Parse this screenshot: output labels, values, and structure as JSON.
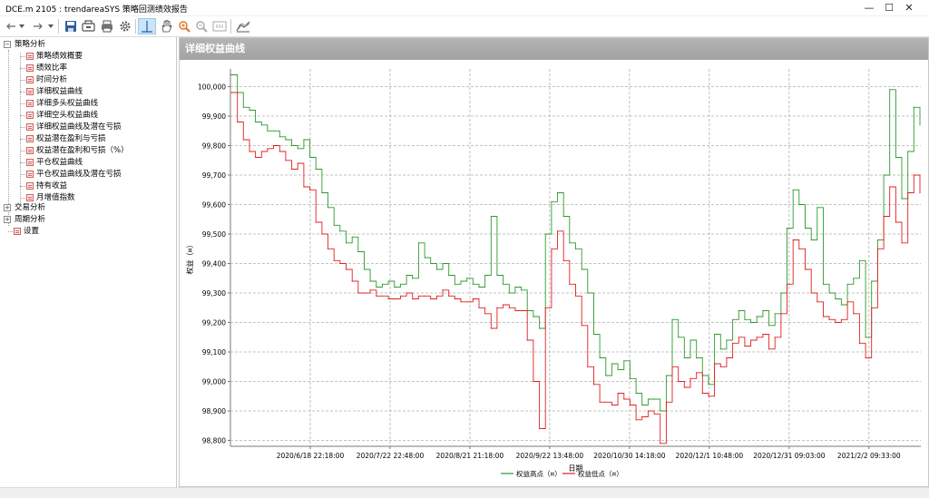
{
  "window": {
    "title": "DCE.m 2105 : trendareaSYS 策略回测绩效报告",
    "controls": [
      "—",
      "☐",
      "✕"
    ]
  },
  "toolbar": {
    "icons": [
      "back-icon",
      "dropdown-icon",
      "forward-icon",
      "dropdown-icon",
      "save-icon",
      "export-icon",
      "print-icon",
      "settings-icon",
      "crosshair-icon",
      "pan-hand-icon",
      "zoom-in-icon",
      "zoom-out-icon",
      "zoom-fit-icon",
      "chart-style-icon"
    ]
  },
  "tree": {
    "groups": [
      {
        "label": "策略分析",
        "expanded": true,
        "items": [
          {
            "label": "策略绩效概要"
          },
          {
            "label": "绩效比率"
          },
          {
            "label": "时间分析"
          },
          {
            "label": "详细权益曲线"
          },
          {
            "label": "详细多头权益曲线"
          },
          {
            "label": "详细空头权益曲线"
          },
          {
            "label": "详细权益曲线及潜在亏损"
          },
          {
            "label": "权益潜在盈利与亏损"
          },
          {
            "label": "权益潜在盈利和亏损（%）"
          },
          {
            "label": "平仓权益曲线"
          },
          {
            "label": "平仓权益曲线及潜在亏损"
          },
          {
            "label": "持有收益"
          },
          {
            "label": "月增值指数"
          }
        ]
      },
      {
        "label": "交易分析",
        "expanded": false
      },
      {
        "label": "周期分析",
        "expanded": false
      }
    ],
    "settings_label": "设置"
  },
  "panel": {
    "title": "详细权益曲线"
  },
  "chart_data": {
    "type": "line",
    "ylabel": "权益（¤）",
    "xlabel": "日期",
    "ylim": [
      98780,
      100060
    ],
    "y_ticks": [
      "100,000",
      "99,900",
      "99,800",
      "99,700",
      "99,600",
      "99,500",
      "99,400",
      "99,300",
      "99,200",
      "99,100",
      "99,000",
      "98,900",
      "98,800"
    ],
    "y_tick_values": [
      100000,
      99900,
      99800,
      99700,
      99600,
      99500,
      99400,
      99300,
      99200,
      99100,
      99000,
      98900,
      98800
    ],
    "x_ticks": [
      "2020/6/18 22:18:00",
      "2020/7/22 22:48:00",
      "2020/8/21 21:18:00",
      "2020/9/22 13:48:00",
      "2020/10/30 14:18:00",
      "2020/12/1 10:48:00",
      "2020/12/31 09:03:00",
      "2021/2/2 09:33:00"
    ],
    "grid": true,
    "legend": [
      {
        "name": "权益高点（¤）",
        "color": "#2e9a2e"
      },
      {
        "name": "权益低点（¤）",
        "color": "#e02020"
      }
    ],
    "series": [
      {
        "name": "权益高点（¤）",
        "values": [
          100040,
          99980,
          99930,
          99920,
          99880,
          99870,
          99850,
          99850,
          99830,
          99820,
          99800,
          99790,
          99820,
          99760,
          99720,
          99640,
          99590,
          99530,
          99510,
          99470,
          99490,
          99440,
          99380,
          99340,
          99320,
          99330,
          99340,
          99320,
          99330,
          99360,
          99350,
          99470,
          99420,
          99400,
          99380,
          99400,
          99360,
          99330,
          99340,
          99350,
          99330,
          99320,
          99360,
          99560,
          99360,
          99330,
          99300,
          99320,
          99310,
          99240,
          99220,
          99180,
          99500,
          99610,
          99640,
          99560,
          99470,
          99450,
          99380,
          99300,
          99160,
          99080,
          99020,
          99060,
          99040,
          99070,
          99010,
          98960,
          98920,
          98940,
          98940,
          98900,
          99020,
          99210,
          99150,
          99080,
          99140,
          99080,
          99020,
          98990,
          99160,
          99110,
          99140,
          99210,
          99240,
          99210,
          99200,
          99220,
          99240,
          99190,
          99230,
          99300,
          99520,
          99650,
          99600,
          99520,
          99480,
          99590,
          99330,
          99300,
          99280,
          99260,
          99330,
          99350,
          99410,
          99150,
          99340,
          99480,
          99700,
          99990,
          99760,
          99620,
          99780,
          99930,
          99870
        ]
      },
      {
        "name": "权益低点（¤）",
        "values": [
          99980,
          99880,
          99820,
          99780,
          99760,
          99780,
          99790,
          99800,
          99780,
          99750,
          99720,
          99740,
          99660,
          99650,
          99540,
          99500,
          99450,
          99410,
          99400,
          99380,
          99340,
          99300,
          99300,
          99310,
          99290,
          99290,
          99280,
          99280,
          99290,
          99300,
          99280,
          99290,
          99290,
          99280,
          99290,
          99310,
          99290,
          99280,
          99270,
          99270,
          99280,
          99250,
          99230,
          99180,
          99250,
          99260,
          99250,
          99240,
          99240,
          99140,
          99000,
          98840,
          99250,
          99450,
          99510,
          99410,
          99330,
          99290,
          99190,
          99050,
          98990,
          98930,
          98930,
          98920,
          98960,
          98940,
          98920,
          98870,
          98880,
          98900,
          98890,
          98790,
          98930,
          99050,
          99000,
          98980,
          99010,
          99030,
          98960,
          98950,
          99060,
          99050,
          99080,
          99130,
          99150,
          99120,
          99140,
          99150,
          99160,
          99110,
          99150,
          99230,
          99330,
          99480,
          99450,
          99380,
          99300,
          99270,
          99220,
          99210,
          99200,
          99210,
          99270,
          99230,
          99130,
          99080,
          99250,
          99450,
          99560,
          99660,
          99540,
          99470,
          99640,
          99700,
          99640
        ]
      }
    ]
  }
}
